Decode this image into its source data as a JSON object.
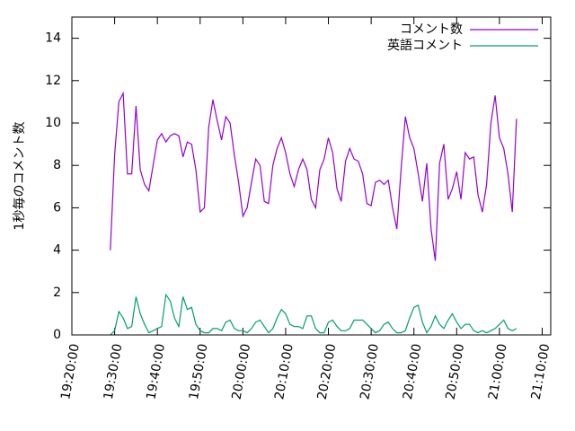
{
  "chart_data": {
    "type": "line",
    "y_label": "1秒毎のコメント数",
    "x": [
      "19:29:00",
      "19:30:00",
      "19:31:00",
      "19:32:00",
      "19:33:00",
      "19:34:00",
      "19:35:00",
      "19:36:00",
      "19:37:00",
      "19:38:00",
      "19:39:00",
      "19:40:00",
      "19:41:00",
      "19:42:00",
      "19:43:00",
      "19:44:00",
      "19:45:00",
      "19:46:00",
      "19:47:00",
      "19:48:00",
      "19:49:00",
      "19:50:00",
      "19:51:00",
      "19:52:00",
      "19:53:00",
      "19:54:00",
      "19:55:00",
      "19:56:00",
      "19:57:00",
      "19:58:00",
      "19:59:00",
      "20:00:00",
      "20:01:00",
      "20:02:00",
      "20:03:00",
      "20:04:00",
      "20:05:00",
      "20:06:00",
      "20:07:00",
      "20:08:00",
      "20:09:00",
      "20:10:00",
      "20:11:00",
      "20:12:00",
      "20:13:00",
      "20:14:00",
      "20:15:00",
      "20:16:00",
      "20:17:00",
      "20:18:00",
      "20:19:00",
      "20:20:00",
      "20:21:00",
      "20:22:00",
      "20:23:00",
      "20:24:00",
      "20:25:00",
      "20:26:00",
      "20:27:00",
      "20:28:00",
      "20:29:00",
      "20:30:00",
      "20:31:00",
      "20:32:00",
      "20:33:00",
      "20:34:00",
      "20:35:00",
      "20:36:00",
      "20:37:00",
      "20:38:00",
      "20:39:00",
      "20:40:00",
      "20:41:00",
      "20:42:00",
      "20:43:00",
      "20:44:00",
      "20:45:00",
      "20:46:00",
      "20:47:00",
      "20:48:00",
      "20:49:00",
      "20:50:00",
      "20:51:00",
      "20:52:00",
      "20:53:00",
      "20:54:00",
      "20:55:00",
      "20:56:00",
      "20:57:00",
      "20:58:00",
      "20:59:00",
      "21:00:00",
      "21:01:00",
      "21:02:00",
      "21:03:00",
      "21:04:00"
    ],
    "series": [
      {
        "name": "コメント数",
        "color": "#9400d3",
        "values": [
          4.0,
          8.5,
          11,
          11.4,
          7.6,
          7.6,
          10.8,
          7.8,
          7.1,
          6.8,
          8.0,
          9.2,
          9.5,
          9.1,
          9.4,
          9.5,
          9.4,
          8.4,
          9.1,
          9.0,
          7.8,
          5.8,
          6.0,
          9.8,
          11.1,
          10.1,
          9.2,
          10.3,
          10.0,
          8.5,
          7.2,
          5.6,
          6.0,
          7.2,
          8.3,
          8.0,
          6.3,
          6.2,
          8.0,
          8.8,
          9.3,
          8.6,
          7.6,
          7.0,
          7.8,
          8.3,
          7.8,
          6.4,
          6.0,
          7.8,
          8.3,
          9.3,
          8.6,
          6.9,
          6.3,
          8.2,
          8.8,
          8.3,
          8.2,
          7.6,
          6.2,
          6.1,
          7.2,
          7.3,
          7.1,
          7.3,
          6.0,
          5.0,
          7.8,
          10.3,
          9.3,
          8.8,
          7.6,
          6.3,
          8.1,
          5.0,
          3.5,
          8.1,
          9.0,
          6.4,
          6.9,
          7.7,
          6.4,
          8.6,
          8.3,
          8.4,
          6.6,
          5.8,
          7.1,
          10.0,
          11.3,
          9.3,
          8.8,
          7.6,
          5.8,
          10.2
        ]
      },
      {
        "name": "英語コメント",
        "color": "#009e73",
        "values": [
          0,
          0.2,
          1.1,
          0.8,
          0.3,
          0.4,
          1.8,
          1.0,
          0.5,
          0.1,
          0.2,
          0.3,
          0.4,
          1.9,
          1.6,
          0.8,
          0.4,
          1.8,
          1.2,
          1.3,
          0.5,
          0.2,
          0.1,
          0.1,
          0.3,
          0.3,
          0.2,
          0.6,
          0.7,
          0.3,
          0.2,
          0.2,
          0.1,
          0.3,
          0.6,
          0.7,
          0.4,
          0.1,
          0.3,
          0.8,
          1.2,
          1.0,
          0.5,
          0.4,
          0.4,
          0.3,
          0.9,
          0.9,
          0.3,
          0.1,
          0.1,
          0.6,
          0.7,
          0.4,
          0.2,
          0.2,
          0.3,
          0.7,
          0.7,
          0.7,
          0.5,
          0.3,
          0.1,
          0.2,
          0.5,
          0.6,
          0.3,
          0.1,
          0.1,
          0.2,
          0.8,
          1.3,
          1.4,
          0.6,
          0.1,
          0.4,
          0.9,
          0.5,
          0.3,
          0.7,
          1.0,
          0.6,
          0.3,
          0.5,
          0.5,
          0.2,
          0.1,
          0.2,
          0.1,
          0.2,
          0.3,
          0.5,
          0.7,
          0.3,
          0.2,
          0.3
        ]
      }
    ],
    "xlim": [
      "19:20:00",
      "21:12:00"
    ],
    "xticks": [
      "19:20:00",
      "19:30:00",
      "19:40:00",
      "19:50:00",
      "20:00:00",
      "20:10:00",
      "20:20:00",
      "20:30:00",
      "20:40:00",
      "20:50:00",
      "21:00:00",
      "21:10:00"
    ],
    "ylim": [
      0,
      15
    ],
    "yticks": [
      0,
      2,
      4,
      6,
      8,
      10,
      12,
      14
    ],
    "legend": "top-right"
  }
}
